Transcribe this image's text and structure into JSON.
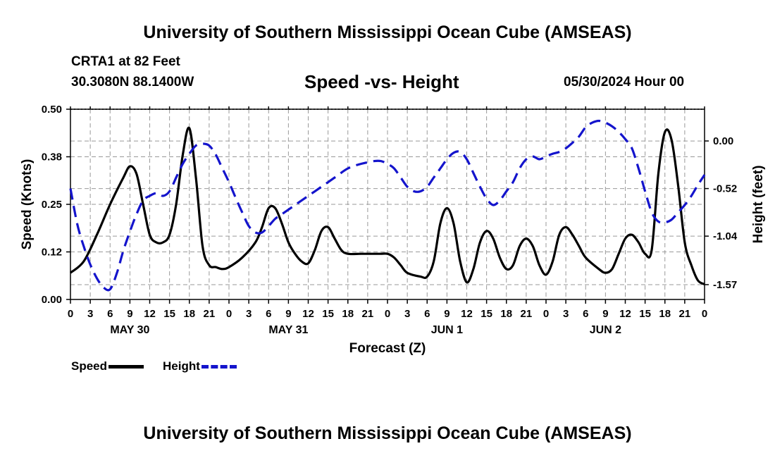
{
  "header": {
    "title": "University of Southern Mississippi Ocean Cube (AMSEAS)"
  },
  "station": {
    "name": "CRTA1 at 82 Feet",
    "coords": "30.3080N  88.1400W"
  },
  "chart_title": "Speed -vs- Height",
  "date_hour": "05/30/2024 Hour 00",
  "footer": {
    "title": "University of Southern Mississippi Ocean Cube (AMSEAS)"
  },
  "legend": {
    "speed_label": "Speed",
    "height_label": "Height"
  },
  "colors": {
    "speed": "#000000",
    "height": "#1414cc",
    "grid": "#999999"
  },
  "chart_data": {
    "type": "line",
    "xlabel": "Forecast (Z)",
    "ylabel_left": "Speed (Knots)",
    "ylabel_right": "Height (feet)",
    "x_range_hours": [
      0,
      96
    ],
    "x_tick_labels": [
      "0",
      "3",
      "6",
      "9",
      "12",
      "15",
      "18",
      "21",
      "0",
      "3",
      "6",
      "9",
      "12",
      "15",
      "18",
      "21",
      "0",
      "3",
      "6",
      "9",
      "12",
      "15",
      "18",
      "21",
      "0",
      "3",
      "6",
      "9",
      "12",
      "15",
      "18",
      "21",
      "0"
    ],
    "day_labels": [
      {
        "label": "MAY 30",
        "hour": 9
      },
      {
        "label": "MAY 31",
        "hour": 33
      },
      {
        "label": "JUN 1",
        "hour": 57
      },
      {
        "label": "JUN 2",
        "hour": 81
      }
    ],
    "y_left": {
      "ticks": [
        "0.00",
        "0.12",
        "0.25",
        "0.38",
        "0.50"
      ],
      "tick_values": [
        0,
        0.125,
        0.25,
        0.375,
        0.5
      ],
      "range": [
        0,
        0.5
      ]
    },
    "y_right": {
      "ticks": [
        "0.00",
        "-0.52",
        "-1.04",
        "-1.57"
      ],
      "tick_values": [
        0.0,
        -0.52,
        -1.04,
        -1.57
      ],
      "range": [
        -1.732,
        0.347
      ]
    },
    "series": [
      {
        "name": "Speed",
        "axis": "left",
        "style": "solid",
        "points": [
          [
            0,
            0.07
          ],
          [
            2,
            0.1
          ],
          [
            4,
            0.17
          ],
          [
            6,
            0.25
          ],
          [
            8,
            0.32
          ],
          [
            9,
            0.35
          ],
          [
            10,
            0.33
          ],
          [
            11,
            0.25
          ],
          [
            12,
            0.17
          ],
          [
            13,
            0.15
          ],
          [
            14,
            0.15
          ],
          [
            15,
            0.17
          ],
          [
            16,
            0.25
          ],
          [
            17,
            0.38
          ],
          [
            18,
            0.45
          ],
          [
            19,
            0.32
          ],
          [
            20,
            0.14
          ],
          [
            21,
            0.09
          ],
          [
            22,
            0.085
          ],
          [
            23,
            0.08
          ],
          [
            24,
            0.085
          ],
          [
            26,
            0.11
          ],
          [
            28,
            0.15
          ],
          [
            29,
            0.19
          ],
          [
            30,
            0.24
          ],
          [
            31,
            0.24
          ],
          [
            32,
            0.2
          ],
          [
            33,
            0.15
          ],
          [
            34,
            0.12
          ],
          [
            35,
            0.1
          ],
          [
            36,
            0.095
          ],
          [
            37,
            0.13
          ],
          [
            38,
            0.18
          ],
          [
            39,
            0.19
          ],
          [
            40,
            0.16
          ],
          [
            41,
            0.13
          ],
          [
            42,
            0.12
          ],
          [
            44,
            0.12
          ],
          [
            46,
            0.12
          ],
          [
            47,
            0.12
          ],
          [
            48,
            0.12
          ],
          [
            49,
            0.11
          ],
          [
            50,
            0.09
          ],
          [
            51,
            0.07
          ],
          [
            53,
            0.06
          ],
          [
            54,
            0.06
          ],
          [
            55,
            0.1
          ],
          [
            56,
            0.2
          ],
          [
            57,
            0.24
          ],
          [
            58,
            0.2
          ],
          [
            59,
            0.1
          ],
          [
            60,
            0.045
          ],
          [
            61,
            0.08
          ],
          [
            62,
            0.15
          ],
          [
            63,
            0.18
          ],
          [
            64,
            0.16
          ],
          [
            65,
            0.11
          ],
          [
            66,
            0.08
          ],
          [
            67,
            0.09
          ],
          [
            68,
            0.14
          ],
          [
            69,
            0.16
          ],
          [
            70,
            0.14
          ],
          [
            71,
            0.09
          ],
          [
            72,
            0.065
          ],
          [
            73,
            0.1
          ],
          [
            74,
            0.17
          ],
          [
            75,
            0.19
          ],
          [
            76,
            0.17
          ],
          [
            77,
            0.14
          ],
          [
            78,
            0.11
          ],
          [
            80,
            0.08
          ],
          [
            81,
            0.07
          ],
          [
            82,
            0.08
          ],
          [
            83,
            0.12
          ],
          [
            84,
            0.16
          ],
          [
            85,
            0.17
          ],
          [
            86,
            0.15
          ],
          [
            87,
            0.12
          ],
          [
            88,
            0.13
          ],
          [
            89,
            0.33
          ],
          [
            90,
            0.44
          ],
          [
            91,
            0.42
          ],
          [
            92,
            0.3
          ],
          [
            93,
            0.15
          ],
          [
            94,
            0.09
          ],
          [
            95,
            0.05
          ],
          [
            96,
            0.04
          ]
        ]
      },
      {
        "name": "Height",
        "axis": "right",
        "style": "dashed",
        "points": [
          [
            0,
            -0.52
          ],
          [
            1,
            -0.9
          ],
          [
            2,
            -1.15
          ],
          [
            3,
            -1.35
          ],
          [
            4,
            -1.5
          ],
          [
            5,
            -1.6
          ],
          [
            6,
            -1.62
          ],
          [
            7,
            -1.45
          ],
          [
            8,
            -1.2
          ],
          [
            9,
            -0.99
          ],
          [
            10,
            -0.8
          ],
          [
            11,
            -0.65
          ],
          [
            12,
            -0.6
          ],
          [
            13,
            -0.57
          ],
          [
            14,
            -0.6
          ],
          [
            15,
            -0.55
          ],
          [
            16,
            -0.4
          ],
          [
            17,
            -0.25
          ],
          [
            18,
            -0.14
          ],
          [
            19,
            -0.05
          ],
          [
            20,
            -0.03
          ],
          [
            21,
            -0.05
          ],
          [
            22,
            -0.15
          ],
          [
            23,
            -0.3
          ],
          [
            24,
            -0.45
          ],
          [
            25,
            -0.62
          ],
          [
            26,
            -0.78
          ],
          [
            27,
            -0.93
          ],
          [
            28,
            -1.0
          ],
          [
            29,
            -1.0
          ],
          [
            30,
            -0.93
          ],
          [
            31,
            -0.85
          ],
          [
            32,
            -0.8
          ],
          [
            34,
            -0.7
          ],
          [
            36,
            -0.6
          ],
          [
            38,
            -0.5
          ],
          [
            40,
            -0.4
          ],
          [
            42,
            -0.3
          ],
          [
            44,
            -0.25
          ],
          [
            46,
            -0.22
          ],
          [
            47,
            -0.22
          ],
          [
            48,
            -0.25
          ],
          [
            49,
            -0.3
          ],
          [
            50,
            -0.4
          ],
          [
            51,
            -0.5
          ],
          [
            52,
            -0.55
          ],
          [
            53,
            -0.55
          ],
          [
            54,
            -0.5
          ],
          [
            55,
            -0.4
          ],
          [
            56,
            -0.3
          ],
          [
            57,
            -0.2
          ],
          [
            58,
            -0.13
          ],
          [
            59,
            -0.12
          ],
          [
            60,
            -0.2
          ],
          [
            61,
            -0.35
          ],
          [
            62,
            -0.5
          ],
          [
            63,
            -0.63
          ],
          [
            64,
            -0.7
          ],
          [
            65,
            -0.65
          ],
          [
            66,
            -0.55
          ],
          [
            67,
            -0.45
          ],
          [
            68,
            -0.3
          ],
          [
            69,
            -0.2
          ],
          [
            70,
            -0.17
          ],
          [
            71,
            -0.2
          ],
          [
            72,
            -0.17
          ],
          [
            73,
            -0.14
          ],
          [
            74,
            -0.12
          ],
          [
            75,
            -0.08
          ],
          [
            76,
            -0.02
          ],
          [
            77,
            0.05
          ],
          [
            78,
            0.15
          ],
          [
            79,
            0.2
          ],
          [
            80,
            0.22
          ],
          [
            81,
            0.2
          ],
          [
            82,
            0.16
          ],
          [
            83,
            0.1
          ],
          [
            84,
            0.02
          ],
          [
            85,
            -0.08
          ],
          [
            86,
            -0.3
          ],
          [
            87,
            -0.55
          ],
          [
            88,
            -0.78
          ],
          [
            89,
            -0.88
          ],
          [
            90,
            -0.89
          ],
          [
            91,
            -0.86
          ],
          [
            92,
            -0.78
          ],
          [
            93,
            -0.7
          ],
          [
            94,
            -0.6
          ],
          [
            95,
            -0.48
          ],
          [
            96,
            -0.37
          ]
        ]
      }
    ]
  }
}
